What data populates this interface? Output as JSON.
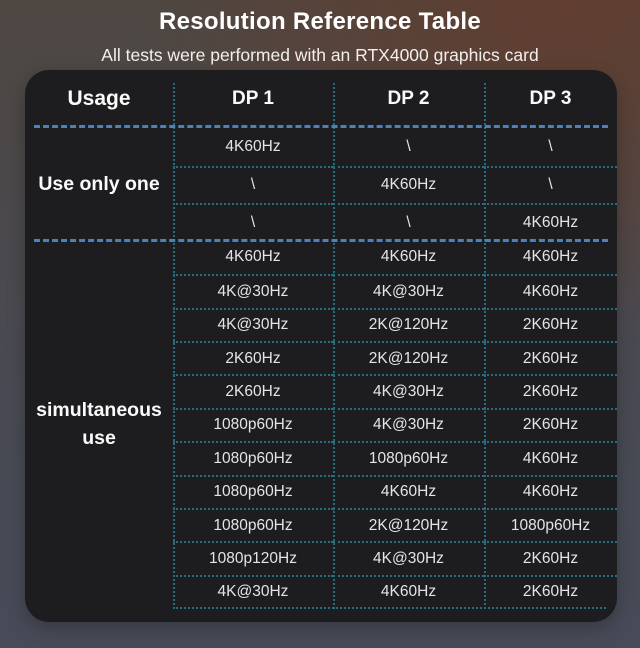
{
  "title": "Resolution Reference Table",
  "subtitle": "All tests were performed with an RTX4000 graphics card",
  "chart_data": {
    "type": "table",
    "title": "Resolution Reference Table",
    "subtitle": "All tests were performed with an RTX4000 graphics card",
    "columns": [
      "Usage",
      "DP 1",
      "DP 2",
      "DP 3"
    ],
    "sections": [
      {
        "label": "Use only one",
        "rows": [
          [
            "4K60Hz",
            "\\",
            "\\"
          ],
          [
            "\\",
            "4K60Hz",
            "\\"
          ],
          [
            "\\",
            "\\",
            "4K60Hz"
          ]
        ]
      },
      {
        "label": "simultaneous use",
        "rows": [
          [
            "4K60Hz",
            "4K60Hz",
            "4K60Hz"
          ],
          [
            "4K@30Hz",
            "4K@30Hz",
            "4K60Hz"
          ],
          [
            "4K@30Hz",
            "2K@120Hz",
            "2K60Hz"
          ],
          [
            "2K60Hz",
            "2K@120Hz",
            "2K60Hz"
          ],
          [
            "2K60Hz",
            "4K@30Hz",
            "2K60Hz"
          ],
          [
            "1080p60Hz",
            "4K@30Hz",
            "2K60Hz"
          ],
          [
            "1080p60Hz",
            "1080p60Hz",
            "4K60Hz"
          ],
          [
            "1080p60Hz",
            "4K60Hz",
            "4K60Hz"
          ],
          [
            "1080p60Hz",
            "2K@120Hz",
            "1080p60Hz"
          ],
          [
            "1080p120Hz",
            "4K@30Hz",
            "2K60Hz"
          ],
          [
            "4K@30Hz",
            "4K60Hz",
            "2K60Hz"
          ]
        ]
      }
    ]
  },
  "colors": {
    "panel_background": "#1d1d20",
    "section_separator_blue": "#4b82bc",
    "grid_dotted_teal": "#256e80",
    "title_text": "#ffffff",
    "cell_text": "#e5e3e5",
    "background_brown": "#5c4138",
    "background_slate": "#474b58"
  }
}
